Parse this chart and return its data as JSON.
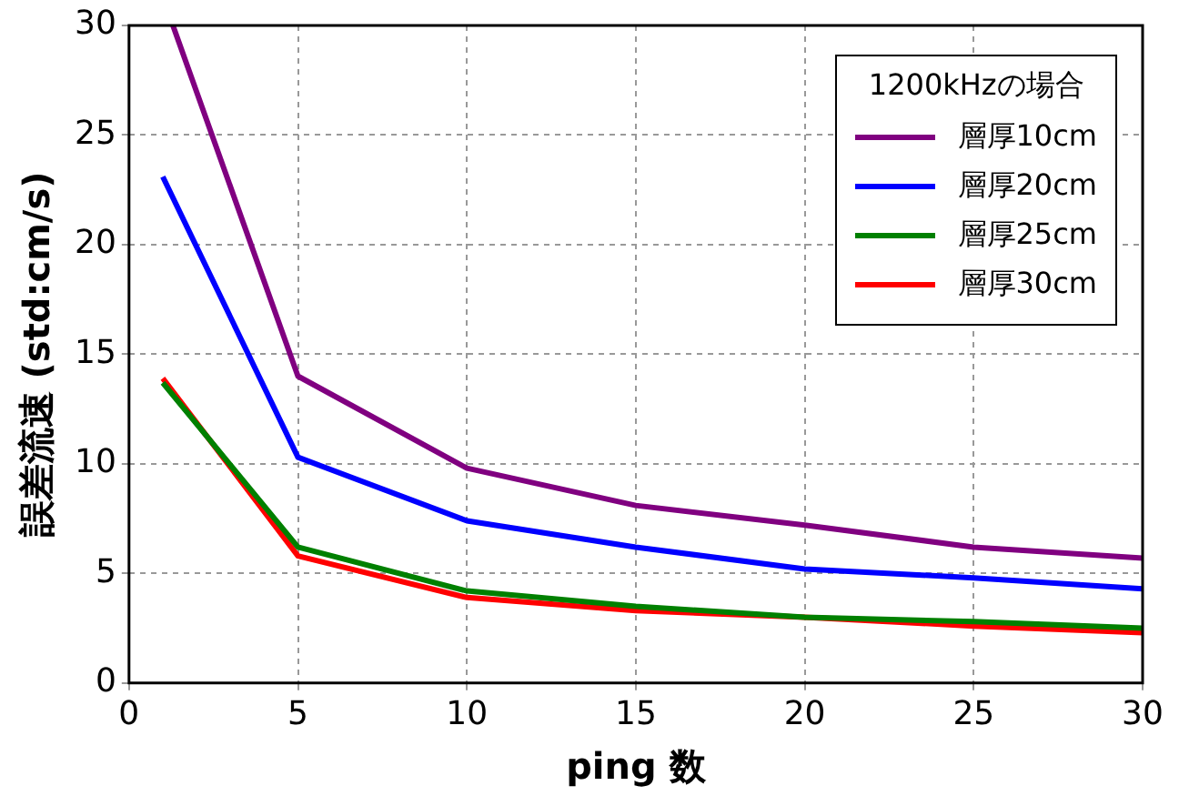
{
  "chart_data": {
    "type": "line",
    "xlabel": "ping 数",
    "ylabel": "誤差流速 (std:cm/s)",
    "legend_title": "1200kHzの場合",
    "x": [
      1,
      5,
      10,
      15,
      20,
      25,
      30
    ],
    "series": [
      {
        "name": "層厚10cm",
        "color": "#800080",
        "x": [
          1.3,
          5,
          10,
          15,
          20,
          25,
          30
        ],
        "values": [
          30,
          14,
          9.8,
          8.1,
          7.2,
          6.2,
          5.7
        ]
      },
      {
        "name": "層厚20cm",
        "color": "#0000ff",
        "values": [
          23.1,
          10.3,
          7.4,
          6.2,
          5.2,
          4.8,
          4.3
        ]
      },
      {
        "name": "層厚25cm",
        "color": "#008000",
        "values": [
          13.7,
          6.2,
          4.2,
          3.5,
          3.0,
          2.8,
          2.5
        ]
      },
      {
        "name": "層厚30cm",
        "color": "#ff0000",
        "values": [
          13.9,
          5.8,
          3.9,
          3.3,
          3.0,
          2.6,
          2.3
        ]
      }
    ],
    "xlim": [
      0,
      30
    ],
    "xticks": [
      0,
      5,
      10,
      15,
      20,
      25,
      30
    ],
    "ylim": [
      0,
      30
    ],
    "yticks": [
      0,
      5,
      10,
      15,
      20,
      25,
      30
    ],
    "grid": true,
    "legend": "top right",
    "marker": "none",
    "line_style": "solid"
  }
}
